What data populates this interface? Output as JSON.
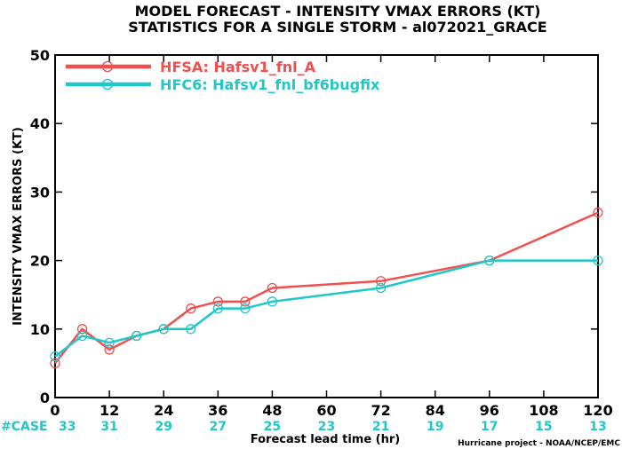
{
  "title_line1": "MODEL FORECAST - INTENSITY VMAX ERRORS (KT)",
  "title_line2": "STATISTICS FOR A SINGLE STORM - al072021_GRACE",
  "case_prefix": "#CASE",
  "credit": "Hurricane project - NOAA/NCEP/EMC",
  "colors": {
    "case_text": "#1ec8c8"
  },
  "chart_data": {
    "type": "line",
    "title": "MODEL FORECAST - INTENSITY VMAX ERRORS (KT)",
    "subtitle": "STATISTICS FOR A SINGLE STORM - al072021_GRACE",
    "xlabel": "Forecast lead time (hr)",
    "ylabel": "INTENSITY VMAX ERRORS (KT)",
    "xlim": [
      0,
      120
    ],
    "ylim": [
      0,
      50
    ],
    "xticks": [
      0,
      12,
      24,
      36,
      48,
      60,
      72,
      84,
      96,
      108,
      120
    ],
    "yticks": [
      0,
      10,
      20,
      30,
      40,
      50
    ],
    "grid": false,
    "legend_position": "top-left",
    "series": [
      {
        "name": "HFSA: Hafsv1_fnl_A",
        "color": "#f0504f",
        "x": [
          0,
          6,
          12,
          18,
          24,
          30,
          36,
          42,
          48,
          72,
          96,
          120
        ],
        "y": [
          5,
          10,
          7,
          9,
          10,
          13,
          14,
          14,
          16,
          17,
          20,
          27
        ]
      },
      {
        "name": "HFC6: Hafsv1_fnl_bf6bugfix",
        "color": "#1ec8c8",
        "x": [
          0,
          6,
          12,
          18,
          24,
          30,
          36,
          42,
          48,
          72,
          96,
          120
        ],
        "y": [
          6,
          9,
          8,
          9,
          10,
          10,
          13,
          13,
          14,
          16,
          20,
          20
        ]
      }
    ],
    "case_counts": {
      "lead_times": [
        0,
        12,
        24,
        36,
        48,
        60,
        72,
        84,
        96,
        108,
        120
      ],
      "counts": [
        "33",
        "31",
        "29",
        "27",
        "25",
        "23",
        "21",
        "19",
        "17",
        "15",
        "13"
      ]
    }
  }
}
